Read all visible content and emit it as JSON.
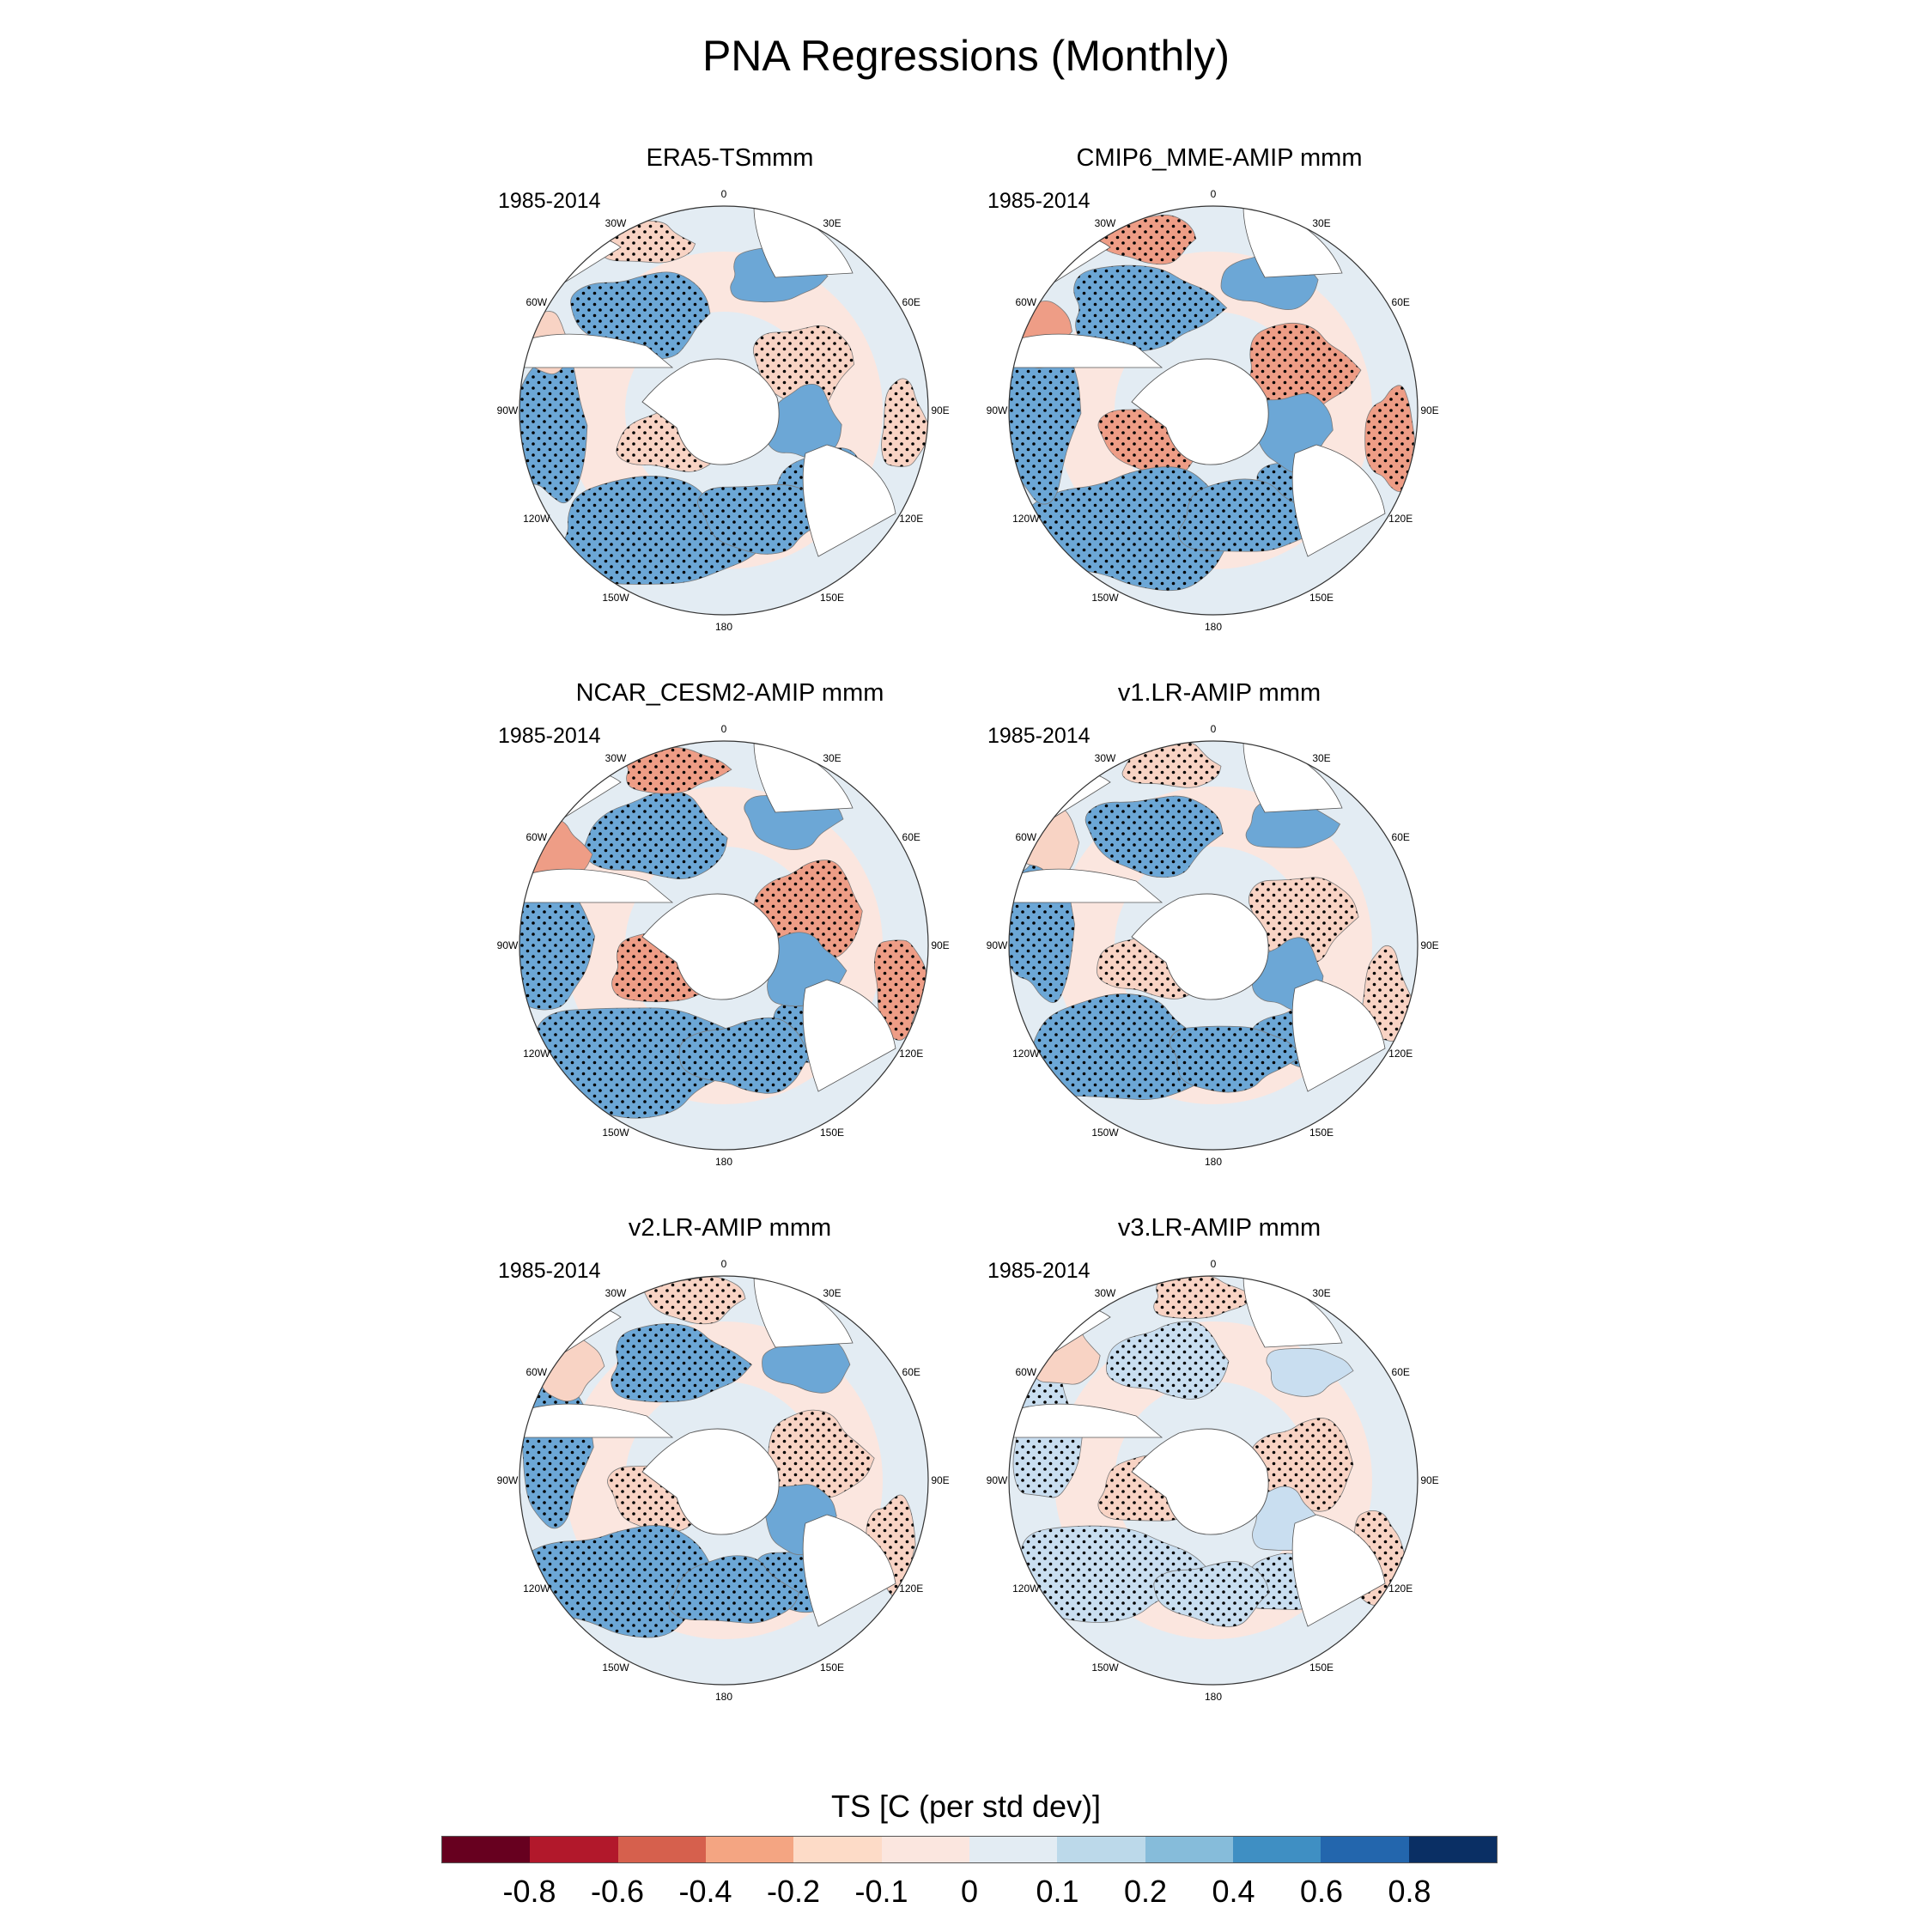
{
  "title": "PNA Regressions (Monthly)",
  "colorbar": {
    "label": "TS [C (per std dev)]",
    "colors": [
      "#67001f",
      "#b2182b",
      "#d6604d",
      "#f4a582",
      "#fddbc7",
      "#fbe6df",
      "#e3ecf3",
      "#bcd9ea",
      "#86bcda",
      "#3f8fc3",
      "#2366ad",
      "#0a2f64"
    ],
    "ticks": [
      "-0.8",
      "-0.6",
      "-0.4",
      "-0.2",
      "-0.1",
      "0",
      "0.1",
      "0.2",
      "0.4",
      "0.6",
      "0.8"
    ]
  },
  "lon_labels": [
    "0",
    "30E",
    "60E",
    "90E",
    "120E",
    "150E",
    "180",
    "150W",
    "120W",
    "90W",
    "60W",
    "30W"
  ],
  "panels": [
    {
      "title": "ERA5-TSmmm",
      "period": "1985-2014"
    },
    {
      "title": "CMIP6_MME-AMIP  mmm",
      "period": "1985-2014"
    },
    {
      "title": "NCAR_CESM2-AMIP  mmm",
      "period": "1985-2014"
    },
    {
      "title": "v1.LR-AMIP  mmm",
      "period": "1985-2014"
    },
    {
      "title": "v2.LR-AMIP  mmm",
      "period": "1985-2014"
    },
    {
      "title": "v3.LR-AMIP  mmm",
      "period": "1985-2014"
    }
  ],
  "regression_fields": [
    {
      "negative_anomaly_at": 0.8,
      "positive_anomaly_at": 0.3
    },
    {
      "negative_anomaly_at": 0.95,
      "positive_anomaly_at": 0.55
    },
    {
      "negative_anomaly_at": 0.85,
      "positive_anomaly_at": 0.6
    },
    {
      "negative_anomaly_at": 0.7,
      "positive_anomaly_at": 0.45
    },
    {
      "negative_anomaly_at": 0.7,
      "positive_anomaly_at": 0.5
    },
    {
      "negative_anomaly_at": 0.5,
      "positive_anomaly_at": 0.45
    }
  ]
}
